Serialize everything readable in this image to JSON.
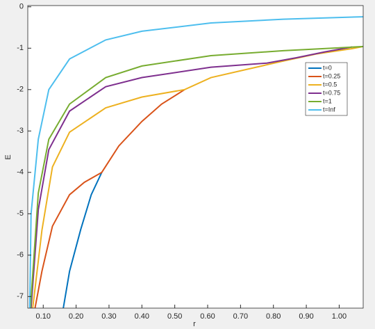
{
  "chart_data": {
    "type": "line",
    "x_label": "r",
    "y_label": "E",
    "xlim": [
      0.053,
      1.073
    ],
    "ylim": [
      -7.28,
      0.03
    ],
    "xticks": [
      {
        "value": 0.1,
        "label": "0.10"
      },
      {
        "value": 0.2,
        "label": "0.20"
      },
      {
        "value": 0.3,
        "label": "0.30"
      },
      {
        "value": 0.4,
        "label": "0.40"
      },
      {
        "value": 0.5,
        "label": "0.50"
      },
      {
        "value": 0.6,
        "label": "0.60"
      },
      {
        "value": 0.7,
        "label": "0.70"
      },
      {
        "value": 0.8,
        "label": "0.80"
      },
      {
        "value": 0.9,
        "label": "0.90"
      },
      {
        "value": 1.0,
        "label": "1.00"
      }
    ],
    "yticks": [
      0,
      -1,
      -2,
      -3,
      -4,
      -5,
      -6,
      -7
    ],
    "grid": false,
    "legend_position": "east",
    "series": [
      {
        "name": "t=0",
        "color": "#0072bd",
        "x": [
          0.161,
          0.18,
          0.214,
          0.246,
          0.278
        ],
        "values": [
          -7.28,
          -6.39,
          -5.38,
          -4.54,
          -4.0
        ]
      },
      {
        "name": "t=0.25",
        "color": "#d95319",
        "x": [
          0.075,
          0.096,
          0.128,
          0.18,
          0.225,
          0.278,
          0.33,
          0.4,
          0.46,
          0.53
        ],
        "values": [
          -7.28,
          -6.39,
          -5.3,
          -4.54,
          -4.24,
          -4.0,
          -3.36,
          -2.77,
          -2.35,
          -2.0
        ]
      },
      {
        "name": "t=0.5",
        "color": "#edb120",
        "x": [
          0.068,
          0.096,
          0.128,
          0.18,
          0.29,
          0.4,
          0.53,
          0.61,
          0.72,
          0.83,
          0.93,
          1.04,
          1.073
        ],
        "values": [
          -7.28,
          -5.4,
          -3.87,
          -3.03,
          -2.44,
          -2.18,
          -2.0,
          -1.71,
          -1.51,
          -1.31,
          -1.14,
          -1.01,
          -0.96
        ]
      },
      {
        "name": "t=0.75",
        "color": "#7e2f8e",
        "x": [
          0.063,
          0.085,
          0.117,
          0.18,
          0.29,
          0.4,
          0.61,
          0.78,
          0.87,
          0.956,
          1.04
        ],
        "values": [
          -7.28,
          -4.9,
          -3.45,
          -2.52,
          -1.93,
          -1.71,
          -1.46,
          -1.36,
          -1.23,
          -1.09,
          -0.97
        ]
      },
      {
        "name": "t=1",
        "color": "#77ac30",
        "x": [
          0.061,
          0.085,
          0.117,
          0.18,
          0.29,
          0.4,
          0.61,
          0.83,
          1.0,
          1.073
        ],
        "values": [
          -7.28,
          -4.5,
          -3.2,
          -2.35,
          -1.71,
          -1.43,
          -1.18,
          -1.06,
          -0.99,
          -0.96
        ]
      },
      {
        "name": "t=Inf",
        "color": "#4dbeee",
        "x": [
          0.059,
          0.063,
          0.085,
          0.117,
          0.18,
          0.29,
          0.4,
          0.61,
          0.83,
          1.073
        ],
        "values": [
          -7.28,
          -5.0,
          -3.2,
          -2.0,
          -1.26,
          -0.8,
          -0.59,
          -0.39,
          -0.3,
          -0.24
        ]
      }
    ]
  }
}
